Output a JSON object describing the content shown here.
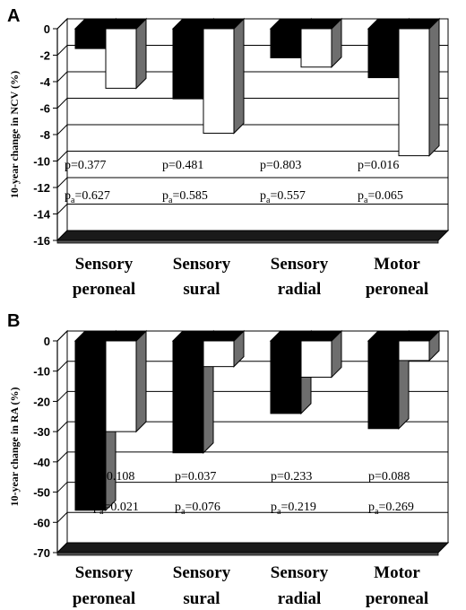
{
  "chart_data": [
    {
      "panel_label": "A",
      "type": "bar",
      "ylabel": "10-year change in NCV (%)",
      "ylim": [
        -16,
        0
      ],
      "yticks": [
        0,
        -2,
        -4,
        -6,
        -8,
        -10,
        -12,
        -14,
        -16
      ],
      "grid": true,
      "categories": [
        [
          "Sensory",
          "peroneal"
        ],
        [
          "Sensory",
          "sural"
        ],
        [
          "Sensory",
          "radial"
        ],
        [
          "Motor",
          "peroneal"
        ]
      ],
      "series": [
        {
          "color": "#000000",
          "values": [
            -1.5,
            -5.3,
            -2.2,
            -3.7
          ]
        },
        {
          "color": "#ffffff",
          "values": [
            -4.5,
            -7.9,
            -2.9,
            -9.6
          ]
        }
      ],
      "annotations": [
        {
          "p": "p=0.377",
          "pa_prefix": "p",
          "pa_sub": "a",
          "pa_value": "=0.627"
        },
        {
          "p": "p=0.481",
          "pa_prefix": "p",
          "pa_sub": "a",
          "pa_value": "=0.585"
        },
        {
          "p": "p=0.803",
          "pa_prefix": "p",
          "pa_sub": "a",
          "pa_value": "=0.557"
        },
        {
          "p": "p=0.016",
          "pa_prefix": "p",
          "pa_sub": "a",
          "pa_value": "=0.065"
        }
      ]
    },
    {
      "panel_label": "B",
      "type": "bar",
      "ylabel": "10-year change in RA (%)",
      "ylim": [
        -70,
        0
      ],
      "yticks": [
        0,
        -10,
        -20,
        -30,
        -40,
        -50,
        -60,
        -70
      ],
      "grid": true,
      "categories": [
        [
          "Sensory",
          "peroneal"
        ],
        [
          "Sensory",
          "sural"
        ],
        [
          "Sensory",
          "radial"
        ],
        [
          "Motor",
          "peroneal"
        ]
      ],
      "series": [
        {
          "color": "#000000",
          "values": [
            -56,
            -37,
            -24,
            -29
          ]
        },
        {
          "color": "#ffffff",
          "values": [
            -30,
            -8.5,
            -12,
            -6.5
          ]
        }
      ],
      "annotations": [
        {
          "p": "p=0.108",
          "pa_prefix": "p",
          "pa_sub": "a",
          "pa_value": "=0.021"
        },
        {
          "p": "p=0.037",
          "pa_prefix": "p",
          "pa_sub": "a",
          "pa_value": "=0.076"
        },
        {
          "p": "p=0.233",
          "pa_prefix": "p",
          "pa_sub": "a",
          "pa_value": "=0.219"
        },
        {
          "p": "p=0.088",
          "pa_prefix": "p",
          "pa_sub": "a",
          "pa_value": "=0.269"
        }
      ]
    }
  ]
}
